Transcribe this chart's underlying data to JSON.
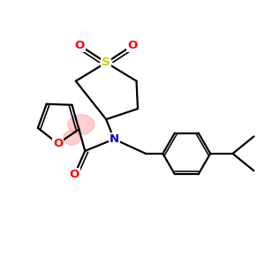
{
  "bg_color": "#ffffff",
  "atom_color_N": "#0000cd",
  "atom_color_O": "#ff0000",
  "atom_color_S": "#cccc00",
  "atom_color_C": "#000000",
  "line_color": "#000000",
  "line_width": 1.6,
  "figsize": [
    3.0,
    3.0
  ],
  "dpi": 100,
  "xlim": [
    0.0,
    10.0
  ],
  "ylim": [
    1.0,
    9.5
  ],
  "pink_blobs": [
    [
      3.05,
      5.55,
      1.0,
      0.75,
      0.4
    ],
    [
      2.7,
      5.05,
      0.65,
      0.55,
      0.4
    ]
  ]
}
